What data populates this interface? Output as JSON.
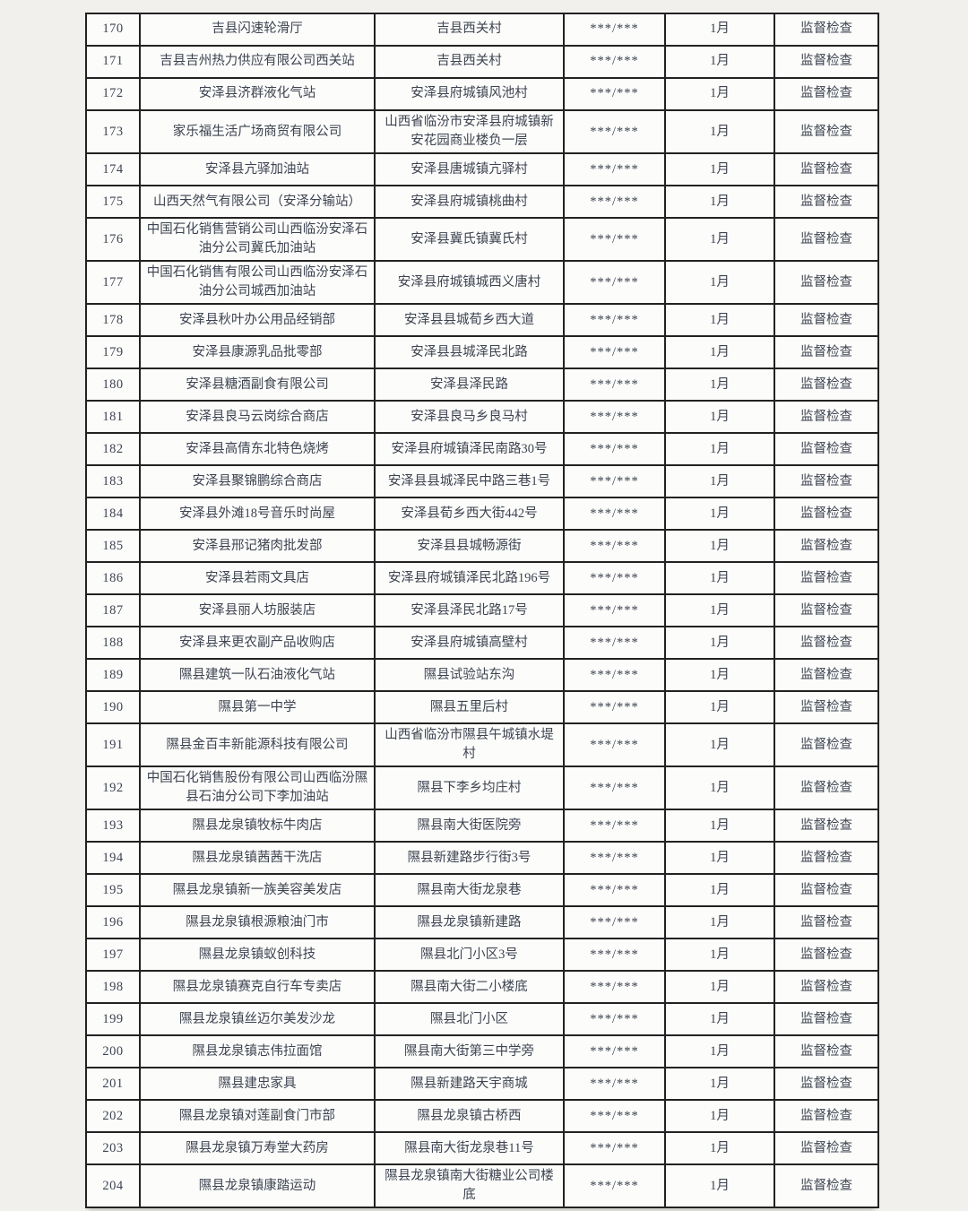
{
  "document": {
    "masked_phone_format": "***/***",
    "month_label": "1月",
    "inspection_type_label": "监督检查",
    "text_color": "#3d4350",
    "border_color": "#222222",
    "page_background": "#f2f0ed",
    "cell_background": "#fcfcfb"
  },
  "table": {
    "column_keys": [
      "num",
      "name",
      "address",
      "phone",
      "month",
      "type"
    ],
    "rows": [
      {
        "num": "170",
        "name": "吉县闪速轮滑厅",
        "address": "吉县西关村",
        "phone": "***/***",
        "month": "1月",
        "type": "监督检查"
      },
      {
        "num": "171",
        "name": "吉县吉州热力供应有限公司西关站",
        "address": "吉县西关村",
        "phone": "***/***",
        "month": "1月",
        "type": "监督检查"
      },
      {
        "num": "172",
        "name": "安泽县济群液化气站",
        "address": "安泽县府城镇风池村",
        "phone": "***/***",
        "month": "1月",
        "type": "监督检查"
      },
      {
        "num": "173",
        "name": "家乐福生活广场商贸有限公司",
        "address": "山西省临汾市安泽县府城镇新安花园商业楼负一层",
        "phone": "***/***",
        "month": "1月",
        "type": "监督检查"
      },
      {
        "num": "174",
        "name": "安泽县亢驿加油站",
        "address": "安泽县唐城镇亢驿村",
        "phone": "***/***",
        "month": "1月",
        "type": "监督检查"
      },
      {
        "num": "175",
        "name": "山西天然气有限公司（安泽分输站）",
        "address": "安泽县府城镇桃曲村",
        "phone": "***/***",
        "month": "1月",
        "type": "监督检查"
      },
      {
        "num": "176",
        "name": "中国石化销售营销公司山西临汾安泽石油分公司冀氏加油站",
        "address": "安泽县冀氏镇冀氏村",
        "phone": "***/***",
        "month": "1月",
        "type": "监督检查"
      },
      {
        "num": "177",
        "name": "中国石化销售有限公司山西临汾安泽石油分公司城西加油站",
        "address": "安泽县府城镇城西义唐村",
        "phone": "***/***",
        "month": "1月",
        "type": "监督检查"
      },
      {
        "num": "178",
        "name": "安泽县秋叶办公用品经销部",
        "address": "安泽县县城荀乡西大道",
        "phone": "***/***",
        "month": "1月",
        "type": "监督检查"
      },
      {
        "num": "179",
        "name": "安泽县康源乳品批零部",
        "address": "安泽县县城泽民北路",
        "phone": "***/***",
        "month": "1月",
        "type": "监督检查"
      },
      {
        "num": "180",
        "name": "安泽县糖酒副食有限公司",
        "address": "安泽县泽民路",
        "phone": "***/***",
        "month": "1月",
        "type": "监督检查"
      },
      {
        "num": "181",
        "name": "安泽县良马云岗综合商店",
        "address": "安泽县良马乡良马村",
        "phone": "***/***",
        "month": "1月",
        "type": "监督检查"
      },
      {
        "num": "182",
        "name": "安泽县高倩东北特色烧烤",
        "address": "安泽县府城镇泽民南路30号",
        "phone": "***/***",
        "month": "1月",
        "type": "监督检查"
      },
      {
        "num": "183",
        "name": "安泽县聚锦鹏综合商店",
        "address": "安泽县县城泽民中路三巷1号",
        "phone": "***/***",
        "month": "1月",
        "type": "监督检查"
      },
      {
        "num": "184",
        "name": "安泽县外滩18号音乐时尚屋",
        "address": "安泽县荀乡西大街442号",
        "phone": "***/***",
        "month": "1月",
        "type": "监督检查"
      },
      {
        "num": "185",
        "name": "安泽县邢记猪肉批发部",
        "address": "安泽县县城畅源街",
        "phone": "***/***",
        "month": "1月",
        "type": "监督检查"
      },
      {
        "num": "186",
        "name": "安泽县若雨文具店",
        "address": "安泽县府城镇泽民北路196号",
        "phone": "***/***",
        "month": "1月",
        "type": "监督检查"
      },
      {
        "num": "187",
        "name": "安泽县丽人坊服装店",
        "address": "安泽县泽民北路17号",
        "phone": "***/***",
        "month": "1月",
        "type": "监督检查"
      },
      {
        "num": "188",
        "name": "安泽县来更农副产品收购店",
        "address": "安泽县府城镇高壁村",
        "phone": "***/***",
        "month": "1月",
        "type": "监督检查"
      },
      {
        "num": "189",
        "name": "隰县建筑一队石油液化气站",
        "address": "隰县试验站东沟",
        "phone": "***/***",
        "month": "1月",
        "type": "监督检查"
      },
      {
        "num": "190",
        "name": "隰县第一中学",
        "address": "隰县五里后村",
        "phone": "***/***",
        "month": "1月",
        "type": "监督检查"
      },
      {
        "num": "191",
        "name": "隰县金百丰新能源科技有限公司",
        "address": "山西省临汾市隰县午城镇水堤村",
        "phone": "***/***",
        "month": "1月",
        "type": "监督检查"
      },
      {
        "num": "192",
        "name": "中国石化销售股份有限公司山西临汾隰县石油分公司下李加油站",
        "address": "隰县下李乡均庄村",
        "phone": "***/***",
        "month": "1月",
        "type": "监督检查"
      },
      {
        "num": "193",
        "name": "隰县龙泉镇牧标牛肉店",
        "address": "隰县南大街医院旁",
        "phone": "***/***",
        "month": "1月",
        "type": "监督检查"
      },
      {
        "num": "194",
        "name": "隰县龙泉镇茜茜干洗店",
        "address": "隰县新建路步行街3号",
        "phone": "***/***",
        "month": "1月",
        "type": "监督检查"
      },
      {
        "num": "195",
        "name": "隰县龙泉镇新一族美容美发店",
        "address": "隰县南大街龙泉巷",
        "phone": "***/***",
        "month": "1月",
        "type": "监督检查"
      },
      {
        "num": "196",
        "name": "隰县龙泉镇根源粮油门市",
        "address": "隰县龙泉镇新建路",
        "phone": "***/***",
        "month": "1月",
        "type": "监督检查"
      },
      {
        "num": "197",
        "name": "隰县龙泉镇蚁创科技",
        "address": "隰县北门小区3号",
        "phone": "***/***",
        "month": "1月",
        "type": "监督检查"
      },
      {
        "num": "198",
        "name": "隰县龙泉镇赛克自行车专卖店",
        "address": "隰县南大街二小楼底",
        "phone": "***/***",
        "month": "1月",
        "type": "监督检查"
      },
      {
        "num": "199",
        "name": "隰县龙泉镇丝迈尔美发沙龙",
        "address": "隰县北门小区",
        "phone": "***/***",
        "month": "1月",
        "type": "监督检查"
      },
      {
        "num": "200",
        "name": "隰县龙泉镇志伟拉面馆",
        "address": "隰县南大街第三中学旁",
        "phone": "***/***",
        "month": "1月",
        "type": "监督检查"
      },
      {
        "num": "201",
        "name": "隰县建忠家具",
        "address": "隰县新建路天宇商城",
        "phone": "***/***",
        "month": "1月",
        "type": "监督检查"
      },
      {
        "num": "202",
        "name": "隰县龙泉镇对莲副食门市部",
        "address": "隰县龙泉镇古桥西",
        "phone": "***/***",
        "month": "1月",
        "type": "监督检查"
      },
      {
        "num": "203",
        "name": "隰县龙泉镇万寿堂大药房",
        "address": "隰县南大街龙泉巷11号",
        "phone": "***/***",
        "month": "1月",
        "type": "监督检查"
      },
      {
        "num": "204",
        "name": "隰县龙泉镇康踏运动",
        "address": "隰县龙泉镇南大街糖业公司楼底",
        "phone": "***/***",
        "month": "1月",
        "type": "监督检查"
      }
    ]
  }
}
